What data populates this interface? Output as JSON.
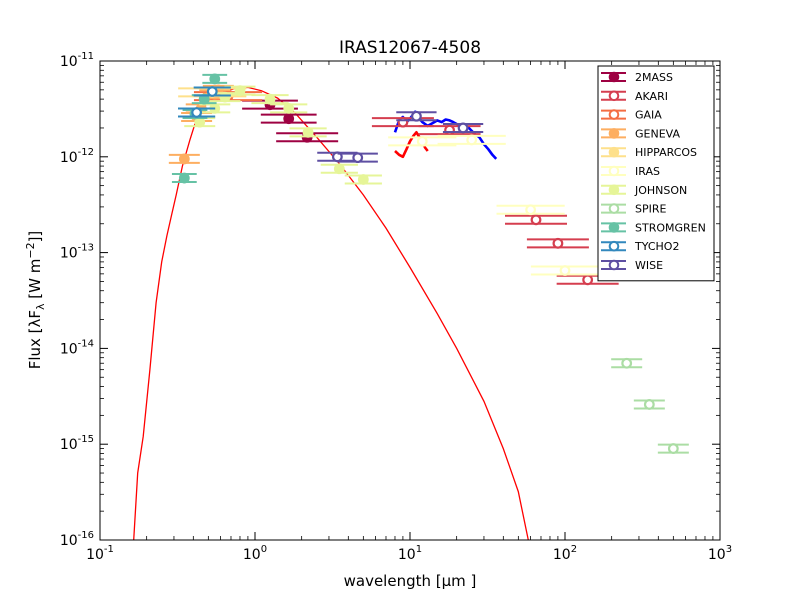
{
  "chart_data": {
    "type": "scatter",
    "title": "IRAS12067-4508",
    "xlabel": "wavelength [μm ]",
    "ylabel": "Flux [λF",
    "ylabel_sub": "λ",
    "ylabel_unit": " [W  m",
    "ylabel_sup": "−2",
    "ylabel_end": "]]",
    "x_scale": "log",
    "y_scale": "log",
    "xlim": [
      0.1,
      1000
    ],
    "ylim": [
      1e-16,
      1e-11
    ],
    "x_ticks": [
      {
        "value": 0.1,
        "base": "10",
        "exp": "-1"
      },
      {
        "value": 1,
        "base": "10",
        "exp": "0"
      },
      {
        "value": 10,
        "base": "10",
        "exp": "1"
      },
      {
        "value": 100,
        "base": "10",
        "exp": "2"
      },
      {
        "value": 1000,
        "base": "10",
        "exp": "3"
      }
    ],
    "y_ticks": [
      {
        "value": 1e-16,
        "base": "10",
        "exp": "-16"
      },
      {
        "value": 1e-15,
        "base": "10",
        "exp": "-15"
      },
      {
        "value": 1e-14,
        "base": "10",
        "exp": "-14"
      },
      {
        "value": 1e-13,
        "base": "10",
        "exp": "-13"
      },
      {
        "value": 1e-12,
        "base": "10",
        "exp": "-12"
      },
      {
        "value": 1e-11,
        "base": "10",
        "exp": "-11"
      }
    ],
    "legend_position": "top-right",
    "model_color": "#ff0000",
    "model": [
      [
        0.165,
        1e-16
      ],
      [
        0.175,
        5e-16
      ],
      [
        0.19,
        1.2e-15
      ],
      [
        0.21,
        6e-15
      ],
      [
        0.23,
        3e-14
      ],
      [
        0.25,
        8e-14
      ],
      [
        0.27,
        1.5e-13
      ],
      [
        0.29,
        2.5e-13
      ],
      [
        0.31,
        4e-13
      ],
      [
        0.34,
        8e-13
      ],
      [
        0.38,
        1.5e-12
      ],
      [
        0.42,
        2.5e-12
      ],
      [
        0.5,
        3.8e-12
      ],
      [
        0.6,
        4.6e-12
      ],
      [
        0.75,
        5.2e-12
      ],
      [
        0.9,
        5.3e-12
      ],
      [
        1.1,
        4.9e-12
      ],
      [
        1.4,
        4.1e-12
      ],
      [
        1.8,
        2.9e-12
      ],
      [
        2.5,
        1.6e-12
      ],
      [
        3.5,
        8.5e-13
      ],
      [
        5,
        4e-13
      ],
      [
        7,
        1.8e-13
      ],
      [
        10,
        7e-14
      ],
      [
        15,
        2.3e-14
      ],
      [
        20,
        1e-14
      ],
      [
        30,
        2.8e-15
      ],
      [
        40,
        9e-16
      ],
      [
        50,
        3.2e-16
      ],
      [
        58,
        1e-16
      ]
    ],
    "spectra": [
      {
        "color": "#0000ff",
        "points": [
          [
            8.0,
            1.8e-12
          ],
          [
            8.5,
            2.4e-12
          ],
          [
            9.0,
            2.6e-12
          ],
          [
            9.5,
            2.3e-12
          ],
          [
            10.0,
            2.5e-12
          ],
          [
            10.8,
            2.95e-12
          ],
          [
            11.3,
            2.6e-12
          ],
          [
            12.0,
            2.3e-12
          ],
          [
            13,
            2.1e-12
          ],
          [
            14,
            2.25e-12
          ],
          [
            15,
            2.4e-12
          ],
          [
            16,
            2.3e-12
          ],
          [
            17,
            2.45e-12
          ],
          [
            18,
            2.4e-12
          ],
          [
            19,
            2.3e-12
          ],
          [
            20,
            2.2e-12
          ],
          [
            22,
            2.05e-12
          ],
          [
            24,
            2e-12
          ],
          [
            26,
            1.75e-12
          ],
          [
            28,
            1.6e-12
          ],
          [
            30,
            1.35e-12
          ],
          [
            32,
            1.2e-12
          ],
          [
            34,
            1.05e-12
          ],
          [
            36,
            9.5e-13
          ]
        ]
      },
      {
        "color": "#ff0000",
        "points": [
          [
            8.0,
            1.15e-12
          ],
          [
            8.5,
            1.05e-12
          ],
          [
            9.0,
            1e-12
          ],
          [
            9.5,
            1.2e-12
          ],
          [
            10.0,
            1.45e-12
          ],
          [
            10.5,
            1.65e-12
          ],
          [
            11.0,
            1.8e-12
          ],
          [
            11.5,
            1.6e-12
          ],
          [
            12.0,
            1.45e-12
          ],
          [
            12.5,
            1.25e-12
          ],
          [
            13.0,
            1.15e-12
          ]
        ]
      }
    ],
    "series": [
      {
        "name": "2MASS",
        "color": "#9e0142",
        "filled": true,
        "points": [
          [
            1.25,
            3.5e-12,
            0.18
          ],
          [
            1.65,
            2.5e-12,
            0.18
          ],
          [
            2.17,
            1.6e-12,
            0.2
          ]
        ]
      },
      {
        "name": "AKARI",
        "color": "#d53e4f",
        "filled": false,
        "points": [
          [
            9,
            2.3e-12,
            0.2
          ],
          [
            18,
            1.9e-12,
            0.2
          ],
          [
            65,
            2.2e-13,
            0.2
          ],
          [
            90,
            1.25e-13,
            0.2
          ],
          [
            140,
            5.2e-14,
            0.2
          ]
        ]
      },
      {
        "name": "GAIA",
        "color": "#f46d43",
        "filled": false,
        "points": [
          [
            0.67,
            4.3e-12,
            0.22
          ]
        ]
      },
      {
        "name": "GENEVA",
        "color": "#fdae61",
        "filled": true,
        "points": [
          [
            0.35,
            9.5e-13,
            0.1
          ],
          [
            0.42,
            2.6e-12,
            0.1
          ],
          [
            0.45,
            3.2e-12,
            0.1
          ],
          [
            0.55,
            4.5e-12,
            0.1
          ],
          [
            0.58,
            5e-12,
            0.1
          ]
        ]
      },
      {
        "name": "HIPPARCOS",
        "color": "#fee08b",
        "filled": true,
        "points": [
          [
            0.53,
            4.7e-12,
            0.22
          ]
        ]
      },
      {
        "name": "IRAS",
        "color": "#ffffbf",
        "filled": false,
        "points": [
          [
            12,
            1.45e-12,
            0.22
          ],
          [
            25,
            1.5e-12,
            0.22
          ],
          [
            60,
            2.8e-13,
            0.22
          ],
          [
            100,
            6.5e-14,
            0.22
          ]
        ]
      },
      {
        "name": "JOHNSON",
        "color": "#e6f598",
        "filled": true,
        "points": [
          [
            0.44,
            2.3e-12,
            0.1
          ],
          [
            0.55,
            3.2e-12,
            0.1
          ],
          [
            0.64,
            4.2e-12,
            0.1
          ],
          [
            0.8,
            4.9e-12,
            0.1
          ],
          [
            1.25,
            4e-12,
            0.12
          ],
          [
            1.65,
            3.2e-12,
            0.12
          ],
          [
            2.2,
            1.8e-12,
            0.12
          ],
          [
            3.5,
            7.5e-13,
            0.12
          ],
          [
            5,
            5.8e-13,
            0.12
          ]
        ]
      },
      {
        "name": "SPIRE",
        "color": "#abdda4",
        "filled": false,
        "points": [
          [
            250,
            7e-15,
            0.1
          ],
          [
            350,
            2.6e-15,
            0.1
          ],
          [
            500,
            9e-16,
            0.1
          ]
        ]
      },
      {
        "name": "STROMGREN",
        "color": "#66c2a5",
        "filled": true,
        "points": [
          [
            0.35,
            6e-13,
            0.08
          ],
          [
            0.41,
            2.8e-12,
            0.08
          ],
          [
            0.47,
            4e-12,
            0.08
          ],
          [
            0.55,
            6.5e-12,
            0.08
          ]
        ]
      },
      {
        "name": "TYCHO2",
        "color": "#3288bd",
        "filled": false,
        "points": [
          [
            0.42,
            2.9e-12,
            0.12
          ],
          [
            0.53,
            4.8e-12,
            0.12
          ]
        ]
      },
      {
        "name": "WISE",
        "color": "#5e4fa2",
        "filled": false,
        "points": [
          [
            3.4,
            1e-12,
            0.13
          ],
          [
            4.6,
            9.8e-13,
            0.13
          ],
          [
            11,
            2.65e-12,
            0.13
          ],
          [
            22,
            2e-12,
            0.13
          ]
        ]
      }
    ]
  }
}
